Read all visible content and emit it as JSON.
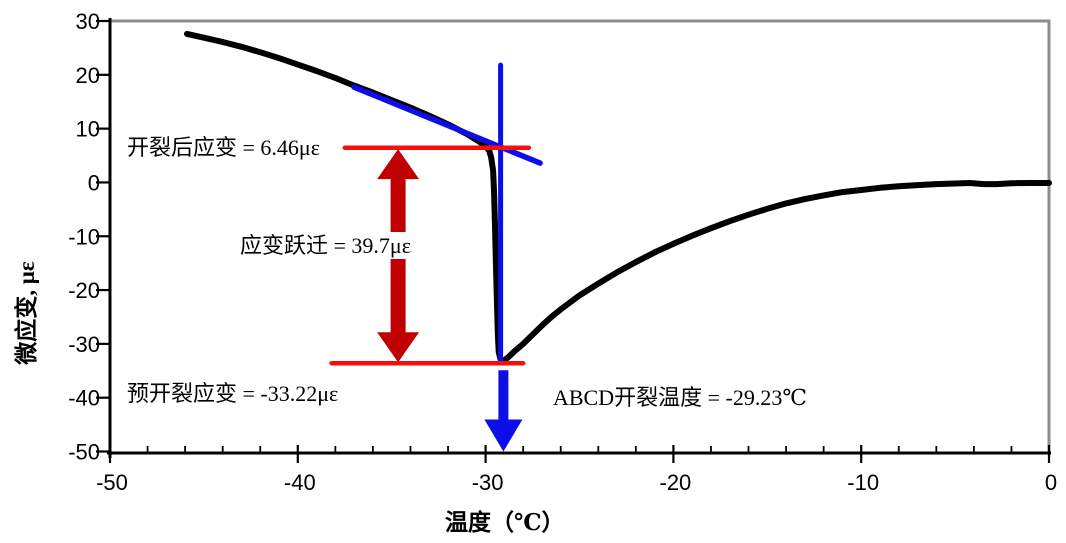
{
  "page": {
    "background": "#ffffff"
  },
  "chart_data": {
    "type": "line",
    "title": "",
    "xlabel": "温度（℃）",
    "ylabel": "微应变, με",
    "xlim": [
      -50,
      0
    ],
    "ylim": [
      -50,
      30
    ],
    "grid": false,
    "legend": false,
    "x_major_ticks": [
      -50,
      -40,
      -30,
      -20,
      -10,
      0
    ],
    "x_tick_labels": [
      "-50",
      "-40",
      "-30",
      "-20",
      "-10",
      "0"
    ],
    "x_minor_tick_step": 2,
    "y_major_ticks": [
      30,
      20,
      10,
      0,
      -10,
      -20,
      -30,
      -40,
      -50
    ],
    "y_tick_labels": [
      "30",
      "20",
      "10",
      "0",
      "-10",
      "-20",
      "-30",
      "-40",
      "-50"
    ],
    "colors": {
      "curve": "#000000",
      "guide_blue": "#0d0de8",
      "guide_red": "#fc0d0d",
      "arrow_dark_red": "#c00000",
      "border_gray": "#8c8c8c",
      "axis_black": "#000000"
    },
    "series": [
      {
        "name": "strain-curve",
        "color": "#000000",
        "width": 6,
        "points": [
          [
            -45.9,
            27.6
          ],
          [
            -45,
            26.9
          ],
          [
            -44,
            26.1
          ],
          [
            -43,
            25.2
          ],
          [
            -42,
            24.2
          ],
          [
            -41,
            23.1
          ],
          [
            -40,
            21.9
          ],
          [
            -39,
            20.7
          ],
          [
            -38,
            19.4
          ],
          [
            -37,
            18.0
          ],
          [
            -36,
            16.7
          ],
          [
            -35,
            15.3
          ],
          [
            -34,
            13.9
          ],
          [
            -33,
            12.4
          ],
          [
            -32,
            10.8
          ],
          [
            -31,
            9.0
          ],
          [
            -30.4,
            7.7
          ],
          [
            -30,
            6.8
          ],
          [
            -29.8,
            5.8
          ],
          [
            -29.7,
            4.6
          ],
          [
            -29.6,
            2.2
          ],
          [
            -29.55,
            -2
          ],
          [
            -29.5,
            -8
          ],
          [
            -29.45,
            -15
          ],
          [
            -29.4,
            -22
          ],
          [
            -29.35,
            -28
          ],
          [
            -29.3,
            -31.5
          ],
          [
            -29.2,
            -32.9
          ],
          [
            -29.05,
            -33.2
          ],
          [
            -28.8,
            -32.5
          ],
          [
            -28.4,
            -31.2
          ],
          [
            -28,
            -30
          ],
          [
            -27.5,
            -28.3
          ],
          [
            -27,
            -26.6
          ],
          [
            -26.5,
            -25
          ],
          [
            -26,
            -23.6
          ],
          [
            -25.5,
            -22.3
          ],
          [
            -25,
            -21
          ],
          [
            -24,
            -18.8
          ],
          [
            -23,
            -16.7
          ],
          [
            -22,
            -14.8
          ],
          [
            -21,
            -13
          ],
          [
            -20,
            -11.4
          ],
          [
            -19,
            -9.9
          ],
          [
            -18,
            -8.5
          ],
          [
            -17,
            -7.2
          ],
          [
            -16,
            -6
          ],
          [
            -15,
            -4.9
          ],
          [
            -14,
            -3.9
          ],
          [
            -13,
            -3.1
          ],
          [
            -12,
            -2.4
          ],
          [
            -11,
            -1.8
          ],
          [
            -10,
            -1.4
          ],
          [
            -9,
            -1
          ],
          [
            -8,
            -0.7
          ],
          [
            -7,
            -0.5
          ],
          [
            -6,
            -0.3
          ],
          [
            -5,
            -0.2
          ],
          [
            -4.2,
            -0.1
          ],
          [
            -3.5,
            -0.3
          ],
          [
            -2.8,
            -0.3
          ],
          [
            -2,
            -0.15
          ],
          [
            -1,
            -0.1
          ],
          [
            0,
            -0.1
          ]
        ]
      },
      {
        "name": "tangent-line",
        "color": "#0d0de8",
        "width": 5.5,
        "points": [
          [
            -37.0,
            17.7
          ],
          [
            -27.1,
            3.6
          ]
        ]
      },
      {
        "name": "crack-vertical-line",
        "color": "#0d0de8",
        "width": 5,
        "points": [
          [
            -29.2,
            21.8
          ],
          [
            -29.2,
            -33.4
          ]
        ]
      },
      {
        "name": "post-crack-strain-line",
        "color": "#fc0d0d",
        "width": 4.5,
        "points": [
          [
            -37.5,
            6.46
          ],
          [
            -27.7,
            6.46
          ]
        ]
      },
      {
        "name": "pre-crack-strain-line",
        "color": "#fc0d0d",
        "width": 4.5,
        "points": [
          [
            -38.2,
            -33.6
          ],
          [
            -28.0,
            -33.6
          ]
        ]
      }
    ],
    "arrows": [
      {
        "name": "strain-jump-arrow",
        "color": "#c00000",
        "x": -34.66,
        "from": 6.2,
        "to": -33.4,
        "double": true,
        "shaft_w": 15,
        "head_w": 42,
        "head_l": 30
      },
      {
        "name": "crack-temperature-arrow",
        "color": "#0d0de8",
        "x": -29.05,
        "from": -34.9,
        "to": -50.0,
        "double": false,
        "shaft_w": 10,
        "head_w": 38,
        "head_l": 32
      }
    ],
    "annotations": [
      {
        "name": "post-crack-strain-label",
        "text": "开裂后应变 = 6.46με"
      },
      {
        "name": "strain-jump-label",
        "text": "应变跃迁 = 39.7με"
      },
      {
        "name": "pre-crack-strain-label",
        "text": "预开裂应变 = -33.22με"
      },
      {
        "name": "crack-temperature-label",
        "text": "ABCD开裂温度 = -29.23℃"
      }
    ],
    "measurements": {
      "post_crack_strain_ue": 6.46,
      "strain_jump_ue": 39.7,
      "pre_crack_strain_ue": -33.22,
      "abcd_crack_temperature_c": -29.23
    }
  }
}
